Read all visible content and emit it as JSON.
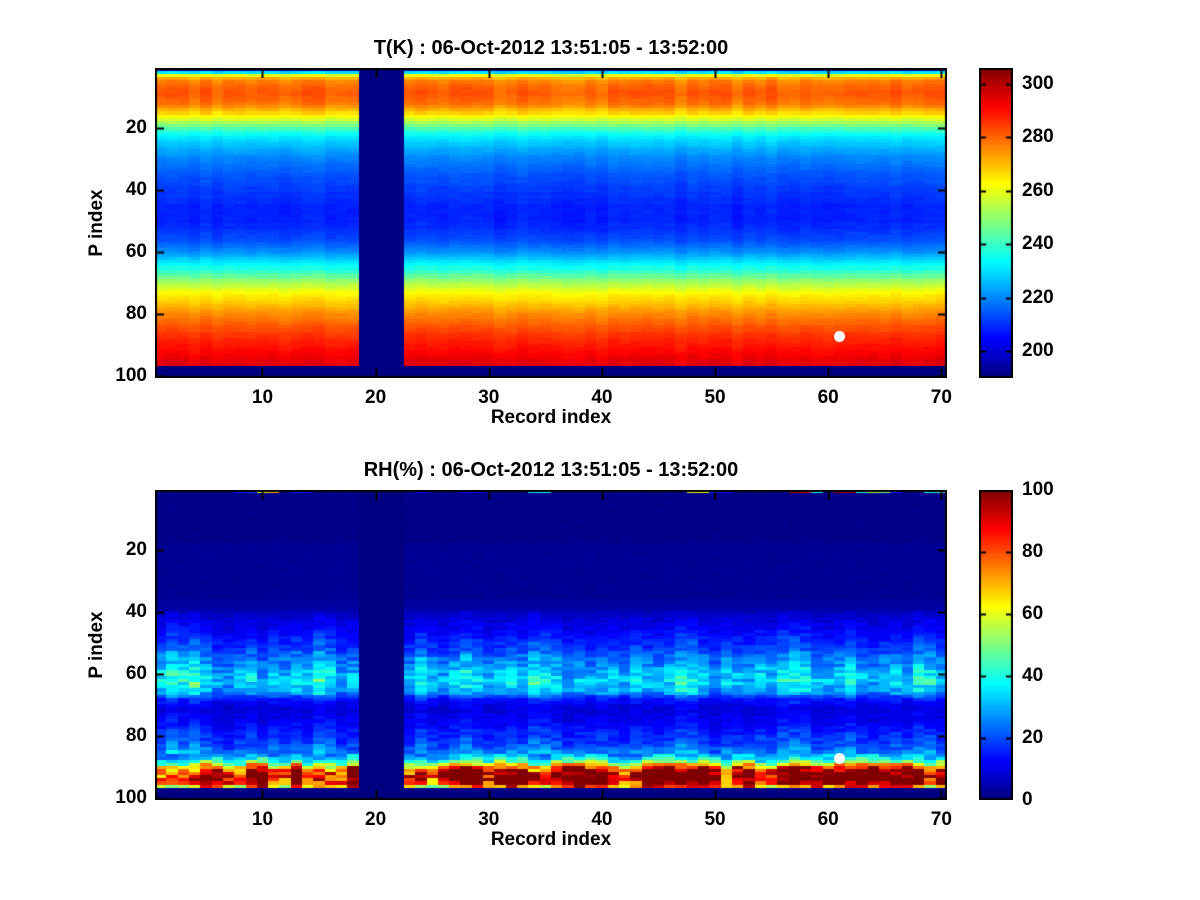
{
  "figure": {
    "background": "#ffffff",
    "axis_color": "#000000"
  },
  "chart_data": [
    {
      "type": "heatmap",
      "kind": "temperature",
      "title": "T(K) : 06-Oct-2012 13:51:05 - 13:52:00",
      "xlabel": "Record index",
      "ylabel": "P index",
      "n_records": 70,
      "n_levels": 100,
      "x_range": [
        1,
        70
      ],
      "y_range": [
        1,
        100
      ],
      "y_axis_reversed": true,
      "x_ticks": [
        10,
        20,
        30,
        40,
        50,
        60,
        70
      ],
      "y_ticks": [
        20,
        40,
        60,
        80,
        100
      ],
      "colormap": "jet",
      "color_domain": [
        190,
        306
      ],
      "colorbar_ticks": [
        200,
        220,
        240,
        260,
        280,
        300
      ],
      "gap_records": [
        19,
        20,
        21,
        22
      ],
      "blank_bottom_rows": [
        97,
        98,
        99,
        100
      ],
      "marker": {
        "record": 61,
        "p": 87,
        "color": "#ffffff"
      },
      "noise_k": 1.6,
      "column_wiggle_k": 2.4,
      "row_profile": [
        196,
        230,
        260,
        272,
        277,
        279,
        280,
        281,
        281,
        280,
        279,
        278,
        275,
        271,
        267,
        262,
        257,
        252,
        247,
        242,
        238,
        234,
        231,
        229,
        227,
        225,
        223,
        222,
        220,
        219,
        218,
        217,
        216,
        215,
        214,
        213,
        213,
        212,
        211,
        211,
        210,
        210,
        209,
        209,
        208,
        208,
        208,
        208,
        208,
        208,
        209,
        209,
        210,
        211,
        212,
        213,
        215,
        217,
        219,
        221,
        224,
        227,
        230,
        233,
        236,
        239,
        243,
        246,
        250,
        253,
        256,
        259,
        262,
        264,
        266,
        268,
        270,
        272,
        274,
        276,
        277,
        279,
        280,
        282,
        283,
        285,
        286,
        287,
        288,
        289,
        290,
        291,
        292,
        293,
        294,
        294,
        190,
        190,
        190,
        190
      ]
    },
    {
      "type": "heatmap",
      "kind": "humidity",
      "title": "RH(%) : 06-Oct-2012 13:51:05 - 13:52:00",
      "xlabel": "Record index",
      "ylabel": "P index",
      "n_records": 70,
      "n_levels": 100,
      "x_range": [
        1,
        70
      ],
      "y_range": [
        1,
        100
      ],
      "y_axis_reversed": true,
      "x_ticks": [
        10,
        20,
        30,
        40,
        50,
        60,
        70
      ],
      "y_ticks": [
        20,
        40,
        60,
        80,
        100
      ],
      "colormap": "jet",
      "color_domain": [
        0,
        100
      ],
      "colorbar_ticks": [
        0,
        20,
        40,
        60,
        80,
        100
      ],
      "gap_records": [
        19,
        20,
        21,
        22
      ],
      "blank_bottom_rows": [
        98,
        99,
        100
      ],
      "marker": {
        "record": 61,
        "p": 87,
        "color": "#ffffff"
      },
      "row_profile": [
        1,
        1,
        1,
        1,
        1,
        1,
        1,
        1,
        1,
        1,
        1,
        1,
        1,
        1,
        1,
        1,
        1,
        2,
        2,
        2,
        2,
        2,
        2,
        2,
        2,
        2,
        2,
        2,
        2,
        2,
        2,
        2,
        2,
        2,
        2,
        3,
        3,
        3,
        4,
        6,
        7,
        8,
        9,
        10,
        11,
        12,
        13,
        14,
        15,
        16,
        17,
        18,
        20,
        22,
        24,
        25,
        26,
        28,
        30,
        31,
        32,
        33,
        32,
        30,
        28,
        25,
        18,
        14,
        12,
        10,
        9,
        9,
        10,
        10,
        11,
        12,
        13,
        14,
        15,
        16,
        17,
        18,
        19,
        21,
        24,
        28,
        33,
        42,
        58,
        75,
        88,
        95,
        97,
        96,
        90,
        70,
        1,
        0,
        0,
        0
      ],
      "bottom_band": {
        "rows": [
          86,
          96
        ],
        "col_intensity": [
          0.8,
          0.85,
          0.82,
          0.88,
          1.15,
          1.2,
          0.9,
          0.85,
          1.18,
          1.22,
          0.88,
          0.85,
          1.15,
          0.82,
          0.9,
          0.85,
          0.88,
          1.18,
          0,
          0,
          0,
          0,
          0.85,
          0.88,
          0.82,
          0.9,
          1.15,
          1.2,
          1.18,
          0.95,
          1.2,
          1.22,
          1.18,
          0.9,
          0.85,
          1.15,
          1.2,
          1.22,
          1.18,
          1.15,
          0.88,
          0.85,
          0.9,
          1.18,
          1.22,
          1.25,
          1.22,
          1.2,
          1.18,
          1.15,
          0.85,
          1.15,
          1.18,
          0.85,
          0.88,
          1.12,
          1.18,
          1.15,
          1.1,
          1.15,
          1.2,
          1.25,
          1.25,
          1.22,
          1.18,
          1.15,
          1.2,
          1.15,
          0.9,
          1.12
        ]
      },
      "mid_band": {
        "rows": [
          40,
          85
        ],
        "col_intensity": [
          1.1,
          1.35,
          1.2,
          1.4,
          1.1,
          0.9,
          0.85,
          1.0,
          1.1,
          0.9,
          1.05,
          0.95,
          1.1,
          1.0,
          1.35,
          1.2,
          0.9,
          1.0,
          0,
          0,
          0,
          0,
          0.95,
          1.2,
          1.0,
          0.9,
          1.05,
          1.25,
          1.1,
          0.95,
          1.0,
          1.15,
          1.05,
          1.3,
          1.2,
          1.1,
          0.9,
          1.0,
          0.95,
          1.05,
          1.0,
          0.9,
          1.1,
          1.0,
          0.95,
          1.05,
          1.3,
          1.25,
          1.0,
          0.9,
          1.05,
          1.0,
          0.95,
          1.1,
          1.0,
          1.25,
          1.3,
          1.2,
          1.0,
          0.95,
          1.05,
          1.2,
          1.0,
          0.9,
          1.0,
          1.1,
          0.95,
          1.25,
          1.2,
          1.0
        ]
      },
      "top_row_spots": [
        {
          "record": 8,
          "value": 16
        },
        {
          "record": 9,
          "value": 18
        },
        {
          "record": 10,
          "value": 62
        },
        {
          "record": 11,
          "value": 70
        },
        {
          "record": 13,
          "value": 16
        },
        {
          "record": 14,
          "value": 15
        },
        {
          "record": 24,
          "value": 13
        },
        {
          "record": 28,
          "value": 14
        },
        {
          "record": 29,
          "value": 12
        },
        {
          "record": 34,
          "value": 36
        },
        {
          "record": 35,
          "value": 40
        },
        {
          "record": 48,
          "value": 60
        },
        {
          "record": 49,
          "value": 62
        },
        {
          "record": 50,
          "value": 16
        },
        {
          "record": 51,
          "value": 14
        },
        {
          "record": 57,
          "value": 96
        },
        {
          "record": 58,
          "value": 92
        },
        {
          "record": 59,
          "value": 38
        },
        {
          "record": 61,
          "value": 96
        },
        {
          "record": 62,
          "value": 98
        },
        {
          "record": 63,
          "value": 42
        },
        {
          "record": 64,
          "value": 55
        },
        {
          "record": 65,
          "value": 50
        },
        {
          "record": 66,
          "value": 16
        },
        {
          "record": 69,
          "value": 40
        },
        {
          "record": 70,
          "value": 45
        }
      ]
    }
  ]
}
